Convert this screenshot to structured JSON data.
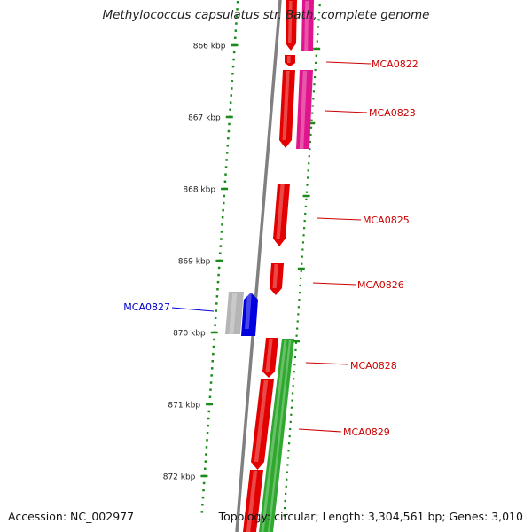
{
  "title": "Methylococcus capsulatus str. Bath, complete genome",
  "footer": {
    "accession": "Accession: NC_002977",
    "genome_info": "Topology: circular; Length: 3,304,561 bp; Genes: 3,010"
  },
  "colors": {
    "backbone": "#808080",
    "ticks": "#1a8a1a",
    "gene_red": "#e30000",
    "gene_pink": "#e0158d",
    "gene_green": "#2fa82f",
    "gene_blue": "#0000e0",
    "gene_gray": "#b5b5b5",
    "label_red": "#cc0000",
    "label_blue": "#0000cc"
  },
  "scale": {
    "major_ticks": [
      {
        "kbp": 866,
        "label": "866 kbp"
      },
      {
        "kbp": 867,
        "label": "867 kbp"
      },
      {
        "kbp": 868,
        "label": "868 kbp"
      },
      {
        "kbp": 869,
        "label": "869 kbp"
      },
      {
        "kbp": 870,
        "label": "870 kbp"
      },
      {
        "kbp": 871,
        "label": "871 kbp"
      },
      {
        "kbp": 872,
        "label": "872 kbp"
      }
    ]
  },
  "genes": [
    {
      "name": "MCA0822",
      "label_color": "red"
    },
    {
      "name": "MCA0823",
      "label_color": "red"
    },
    {
      "name": "MCA0825",
      "label_color": "red"
    },
    {
      "name": "MCA0826",
      "label_color": "red"
    },
    {
      "name": "MCA0827",
      "label_color": "blue"
    },
    {
      "name": "MCA0828",
      "label_color": "red"
    },
    {
      "name": "MCA0829",
      "label_color": "red"
    }
  ]
}
